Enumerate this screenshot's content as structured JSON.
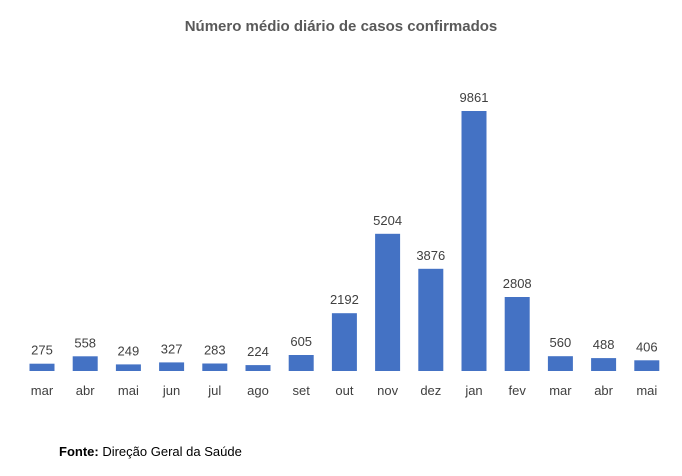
{
  "chart_data": {
    "type": "bar",
    "title": "Número médio diário de casos confirmados",
    "xlabel": "",
    "ylabel": "",
    "categories": [
      "mar",
      "abr",
      "mai",
      "jun",
      "jul",
      "ago",
      "set",
      "out",
      "nov",
      "dez",
      "jan",
      "fev",
      "mar",
      "abr",
      "mai"
    ],
    "values": [
      275,
      558,
      249,
      327,
      283,
      224,
      605,
      2192,
      5204,
      3876,
      9861,
      2808,
      560,
      488,
      406
    ],
    "data_labels": true,
    "grid": false,
    "legend": "none",
    "bar_color": "#4472C4"
  },
  "source": {
    "label": "Fonte:",
    "text": " Direção Geral da Saúde"
  }
}
